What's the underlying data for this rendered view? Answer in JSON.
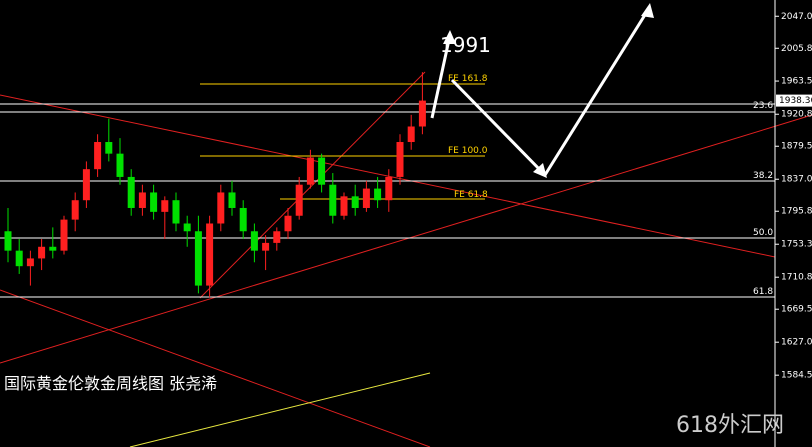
{
  "chart_data": {
    "type": "candlestick",
    "title": "国际黄金伦敦金周线图  张尧浠",
    "annotation": "1991",
    "watermark": "618外汇网",
    "fib_labels": [
      "23.6",
      "38.2",
      "50.0",
      "61.8"
    ],
    "fe_labels": [
      "FE 161.8",
      "FE 100.0",
      "FE 61.8"
    ],
    "last_price": 1938.36,
    "open": [
      1770,
      1745,
      1725,
      1735,
      1750,
      1745,
      1785,
      1810,
      1850,
      1885,
      1870,
      1840,
      1800,
      1820,
      1795,
      1810,
      1780,
      1770,
      1700,
      1780,
      1820,
      1800,
      1770,
      1745,
      1755,
      1770,
      1790,
      1830,
      1865,
      1830,
      1790,
      1815,
      1800,
      1825,
      1810,
      1840,
      1885,
      1905
    ],
    "high": [
      1800,
      1760,
      1745,
      1760,
      1775,
      1790,
      1820,
      1860,
      1895,
      1915,
      1890,
      1850,
      1830,
      1830,
      1815,
      1820,
      1790,
      1790,
      1790,
      1830,
      1835,
      1810,
      1780,
      1765,
      1775,
      1800,
      1840,
      1875,
      1870,
      1845,
      1820,
      1830,
      1835,
      1840,
      1850,
      1895,
      1920,
      1975
    ],
    "low": [
      1730,
      1715,
      1700,
      1720,
      1735,
      1740,
      1770,
      1800,
      1840,
      1860,
      1830,
      1790,
      1790,
      1785,
      1760,
      1770,
      1750,
      1690,
      1685,
      1770,
      1790,
      1760,
      1730,
      1720,
      1745,
      1760,
      1785,
      1825,
      1820,
      1780,
      1785,
      1790,
      1795,
      1800,
      1795,
      1830,
      1875,
      1895
    ],
    "close": [
      1745,
      1725,
      1735,
      1750,
      1745,
      1785,
      1810,
      1850,
      1885,
      1870,
      1840,
      1800,
      1820,
      1795,
      1810,
      1780,
      1770,
      1700,
      1780,
      1820,
      1800,
      1770,
      1745,
      1755,
      1770,
      1790,
      1830,
      1865,
      1830,
      1790,
      1815,
      1800,
      1825,
      1810,
      1840,
      1885,
      1905,
      1938.36
    ],
    "up_color": "#ff2020",
    "down_color": "#00e000",
    "ylim": [
      1492,
      2068
    ],
    "yticks": [
      2047.05,
      {
        "value": 2005.8,
        "label": "2005.80"
      },
      1963.55,
      1920.8,
      {
        "value": 1879.55,
        "label": "1879.55"
      },
      1837.05,
      {
        "value": 1795.8,
        "label": "1795.80"
      },
      {
        "value": 1753.3,
        "label": "1753.30"
      },
      {
        "value": 1710.8,
        "label": "1710.80"
      },
      1669.55,
      1627.05,
      1584.55
    ]
  }
}
